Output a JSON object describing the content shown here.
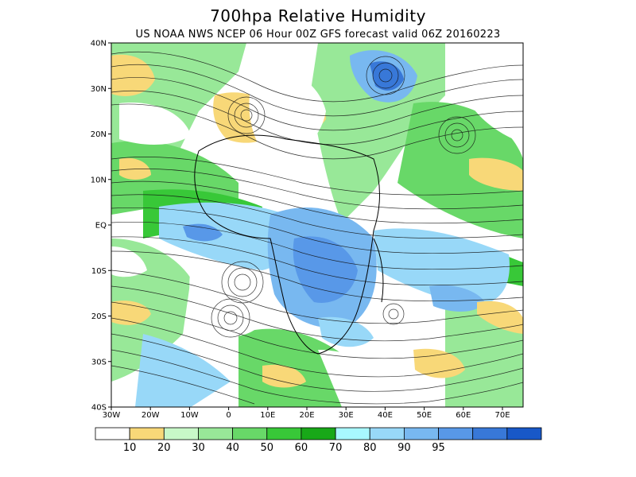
{
  "title": "700hpa Relative Humidity",
  "subtitle": "US NOAA NWS NCEP 06 Hour 00Z GFS forecast valid 06Z 20160223",
  "axes": {
    "lat_labels": [
      "40N",
      "30N",
      "20N",
      "10N",
      "EQ",
      "10S",
      "20S",
      "30S",
      "40S"
    ],
    "lon_labels": [
      "30W",
      "20W",
      "10W",
      "0",
      "10E",
      "20E",
      "30E",
      "40E",
      "50E",
      "60E",
      "70E"
    ]
  },
  "colorbar": {
    "colors": [
      "#ffffff",
      "#f8d878",
      "#c8f8c8",
      "#98e898",
      "#68d868",
      "#38c838",
      "#18a818",
      "#a8f8ff",
      "#98d8f8",
      "#78b8f0",
      "#5898e8",
      "#3878d8",
      "#1858c8"
    ],
    "labels": [
      "10",
      "20",
      "30",
      "40",
      "50",
      "60",
      "70",
      "80",
      "90",
      "95"
    ]
  }
}
